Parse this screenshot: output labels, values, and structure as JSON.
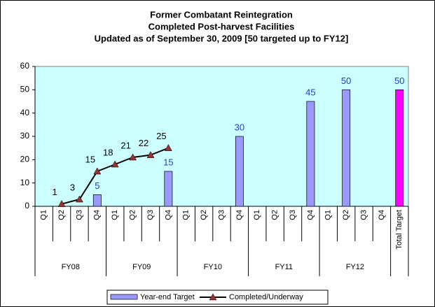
{
  "chart_data": {
    "type": "bar_line",
    "title": [
      "Former Combatant Reintegration",
      "Completed Post-harvest Facilities",
      "Updated as of September 30, 2009 [50 targeted up to FY12]"
    ],
    "categories": [
      "Q1",
      "Q2",
      "Q3",
      "Q4",
      "Q1",
      "Q2",
      "Q3",
      "Q4",
      "Q1",
      "Q2",
      "Q3",
      "Q4",
      "Q1",
      "Q2",
      "Q3",
      "Q4",
      "Q1",
      "Q2",
      "Q3",
      "Q4",
      "Total Target"
    ],
    "groups": [
      "FY08",
      "FY09",
      "FY10",
      "FY11",
      "FY12"
    ],
    "series": [
      {
        "name": "Year-end Target",
        "type": "bar",
        "color": "#9999ff",
        "label_color": "#1f3fcf",
        "colors": [
          null,
          null,
          null,
          "#9999ff",
          null,
          null,
          null,
          "#9999ff",
          null,
          null,
          null,
          "#9999ff",
          null,
          null,
          null,
          "#9999ff",
          null,
          "#9999ff",
          null,
          null,
          "#ff00ff"
        ],
        "values": [
          null,
          null,
          null,
          5,
          null,
          null,
          null,
          15,
          null,
          null,
          null,
          30,
          null,
          null,
          null,
          45,
          null,
          50,
          null,
          null,
          50
        ]
      },
      {
        "name": "Completed/Underway",
        "type": "line",
        "color": "#000000",
        "marker_color": "#993333",
        "label_color": "#000000",
        "values": [
          null,
          1,
          3,
          15,
          18,
          21,
          22,
          25,
          null,
          null,
          null,
          null,
          null,
          null,
          null,
          null,
          null,
          null,
          null,
          null,
          null
        ]
      }
    ],
    "ylim": [
      0,
      60
    ],
    "yticks": [
      0,
      10,
      20,
      30,
      40,
      50,
      60
    ],
    "grid": false,
    "plot_background": "#ccffff",
    "legend": "bottom"
  }
}
